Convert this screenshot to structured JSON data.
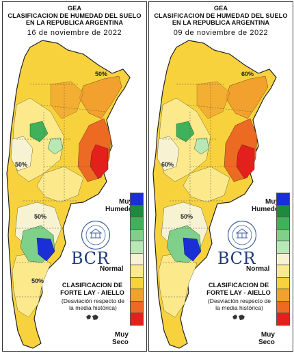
{
  "panels": [
    {
      "org": "GEA",
      "title_line1": "CLASIFICACION DE HUMEDAD DEL SUELO",
      "title_line2": "EN LA REPUBLICA ARGENTINA",
      "date": "16 de noviembre de 2022",
      "contour_labels": [
        "50%",
        "50%",
        "50%",
        "50%"
      ]
    },
    {
      "org": "GEA",
      "title_line1": "CLASIFICACION DE HUMEDAD DEL SUELO",
      "title_line2": "EN LA REPUBLICA ARGENTINA",
      "date": "09 de noviembre de 2022",
      "contour_labels": [
        "60%",
        "60%",
        "50%"
      ]
    }
  ],
  "legend": {
    "top_label_1": "Muy",
    "top_label_2": "Humedo",
    "mid_label": "Normal",
    "bottom_label_1": "Muy",
    "bottom_label_2": "Seco",
    "colors": [
      "#1a2fd6",
      "#1e8a3c",
      "#3fb15a",
      "#7fd08a",
      "#b8e8b6",
      "#f7f3d2",
      "#fbe98c",
      "#f7d23d",
      "#f2a12e",
      "#ec6a22",
      "#e3201b"
    ]
  },
  "logo": {
    "text": "BCR",
    "seal_text": "BOLSA DE COMERCIO DE ROSARIO"
  },
  "classification": {
    "title_line1": "CLASIFICACION DE",
    "title_line2": "FORTE LAY - AIELLO",
    "desc_line1": "(Desviación respecto de",
    "desc_line2": "la media histórica)"
  }
}
